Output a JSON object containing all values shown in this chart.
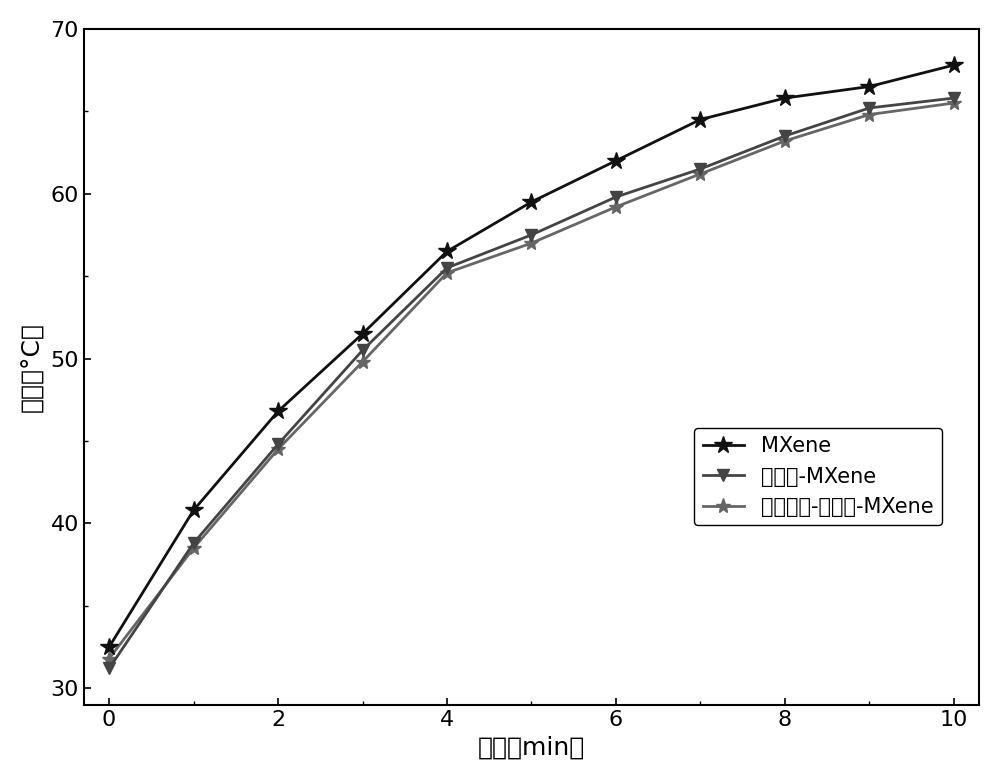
{
  "x": [
    0,
    1,
    2,
    3,
    4,
    5,
    6,
    7,
    8,
    9,
    10
  ],
  "mxene": [
    32.5,
    40.8,
    46.8,
    51.5,
    56.5,
    59.5,
    62.0,
    64.5,
    65.8,
    66.5,
    67.8
  ],
  "photo_mxene": [
    31.2,
    38.8,
    44.8,
    50.5,
    55.5,
    57.5,
    59.8,
    61.5,
    63.5,
    65.2,
    65.8
  ],
  "metal_photo_mxene": [
    31.8,
    38.5,
    44.5,
    49.8,
    55.2,
    57.0,
    59.2,
    61.2,
    63.2,
    64.8,
    65.5
  ],
  "xlabel": "时间（min）",
  "ylabel": "温度（°C）",
  "legend1": "MXene",
  "legend2": "光敏剂-MXene",
  "legend3": "金属团簇-光敏剂-MXene",
  "xlim": [
    -0.3,
    10.3
  ],
  "ylim": [
    29,
    70
  ],
  "yticks": [
    30,
    40,
    50,
    60,
    70
  ],
  "xticks": [
    0,
    2,
    4,
    6,
    8,
    10
  ],
  "color_mxene": "#111111",
  "color_photo": "#444444",
  "color_metal": "#666666",
  "linewidth": 2.0
}
